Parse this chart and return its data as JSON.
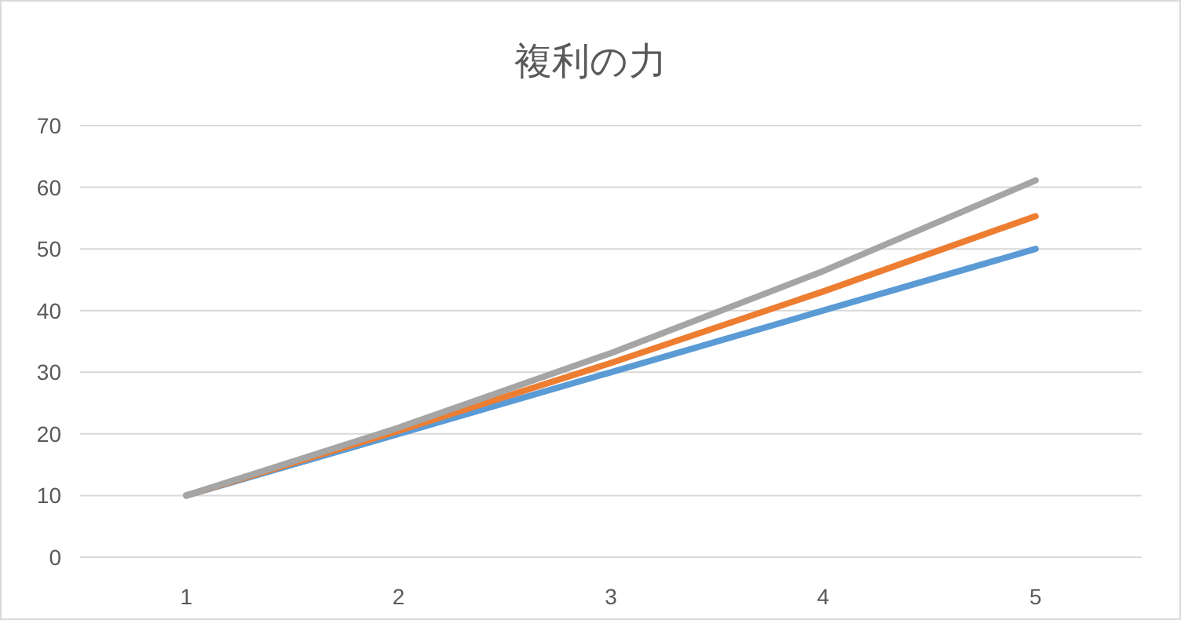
{
  "chart_data": {
    "type": "line",
    "title": "複利の力",
    "categories": [
      "1",
      "2",
      "3",
      "4",
      "5"
    ],
    "series": [
      {
        "color": "#5b9bd5",
        "values": [
          10,
          20,
          30,
          40,
          50
        ]
      },
      {
        "color": "#ed7d31",
        "values": [
          10,
          20.5,
          31.5,
          43.1,
          55.3
        ]
      },
      {
        "color": "#a5a5a5",
        "values": [
          10,
          21,
          33.1,
          46.4,
          61.1
        ]
      }
    ],
    "ylim": [
      0,
      70
    ],
    "yticks": [
      0,
      10,
      20,
      30,
      40,
      50,
      60,
      70
    ],
    "grid": "y",
    "marker": "none",
    "line_style": "solid"
  }
}
